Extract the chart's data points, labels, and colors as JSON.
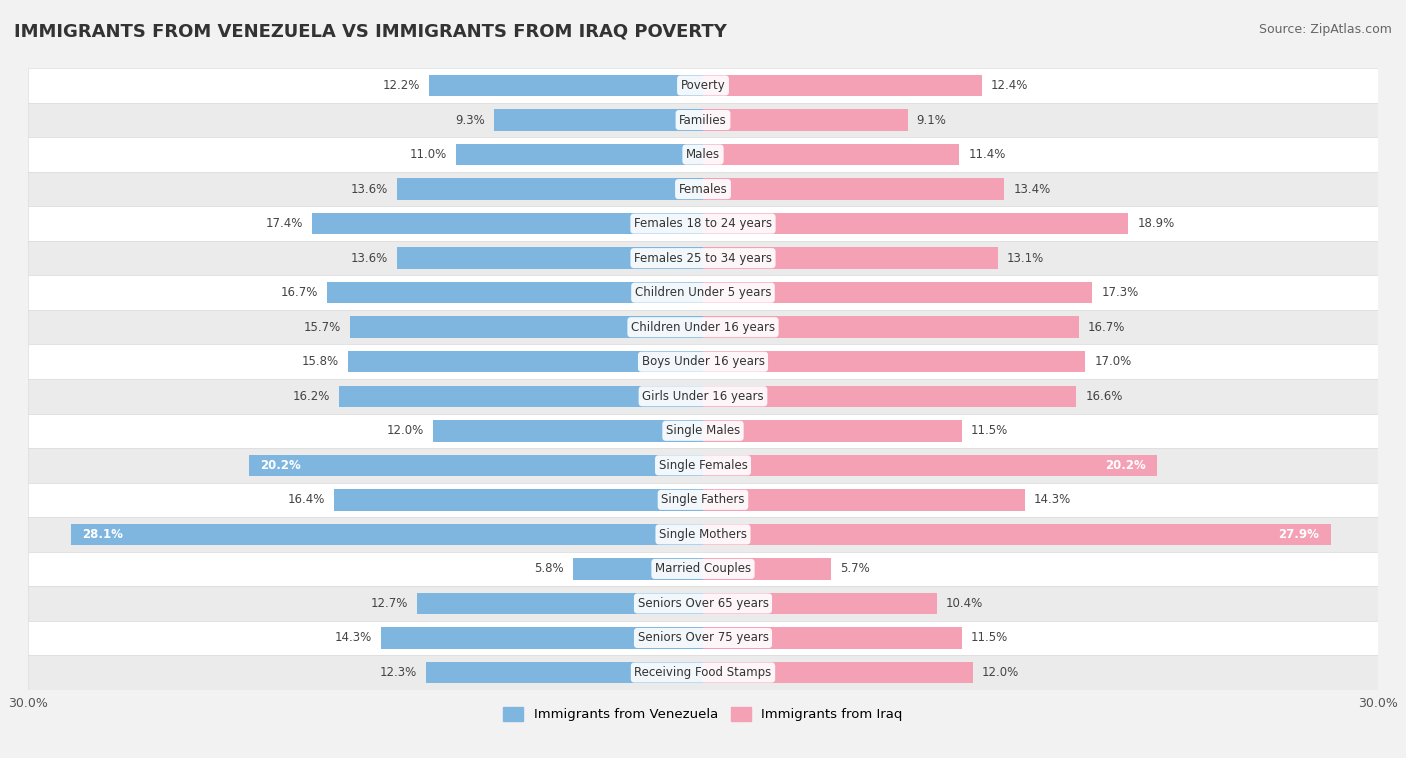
{
  "title": "IMMIGRANTS FROM VENEZUELA VS IMMIGRANTS FROM IRAQ POVERTY",
  "source": "Source: ZipAtlas.com",
  "categories": [
    "Poverty",
    "Families",
    "Males",
    "Females",
    "Females 18 to 24 years",
    "Females 25 to 34 years",
    "Children Under 5 years",
    "Children Under 16 years",
    "Boys Under 16 years",
    "Girls Under 16 years",
    "Single Males",
    "Single Females",
    "Single Fathers",
    "Single Mothers",
    "Married Couples",
    "Seniors Over 65 years",
    "Seniors Over 75 years",
    "Receiving Food Stamps"
  ],
  "venezuela_values": [
    12.2,
    9.3,
    11.0,
    13.6,
    17.4,
    13.6,
    16.7,
    15.7,
    15.8,
    16.2,
    12.0,
    20.2,
    16.4,
    28.1,
    5.8,
    12.7,
    14.3,
    12.3
  ],
  "iraq_values": [
    12.4,
    9.1,
    11.4,
    13.4,
    18.9,
    13.1,
    17.3,
    16.7,
    17.0,
    16.6,
    11.5,
    20.2,
    14.3,
    27.9,
    5.7,
    10.4,
    11.5,
    12.0
  ],
  "venezuela_color": "#7EB6E0",
  "iraq_color": "#F4A0B5",
  "venezuela_label": "Immigrants from Venezuela",
  "iraq_label": "Immigrants from Iraq",
  "xlim": 30.0,
  "bar_height": 0.62,
  "background_color": "#f2f2f2",
  "title_fontsize": 13,
  "source_fontsize": 9,
  "label_fontsize": 8.5,
  "value_fontsize": 8.5,
  "white_text_threshold": 19.5
}
